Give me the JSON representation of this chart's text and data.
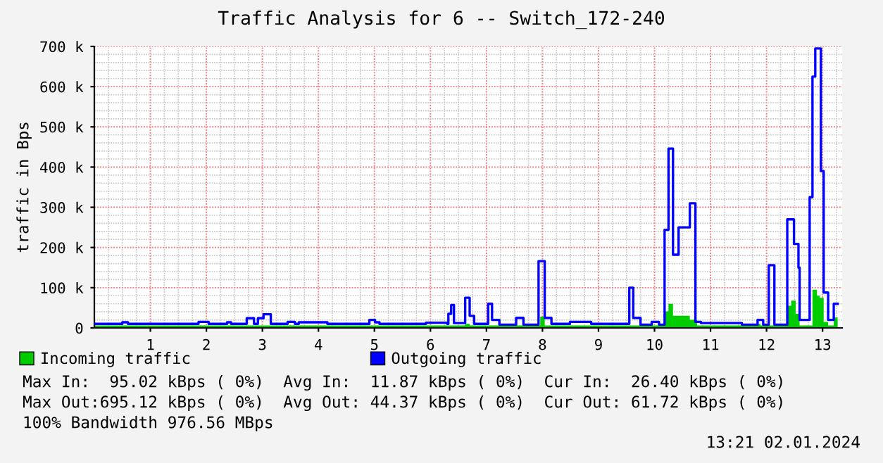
{
  "chart_data": {
    "type": "step",
    "title": "Traffic Analysis for 6 -- Switch_172-240",
    "ylabel": "traffic in Bps",
    "xlim": [
      0,
      13.35
    ],
    "xticks": [
      1,
      2,
      3,
      4,
      5,
      6,
      7,
      8,
      9,
      10,
      11,
      12,
      13
    ],
    "ylim": [
      0,
      700000
    ],
    "yticks": [
      0,
      {
        "value": 100000,
        "label": "100 k"
      },
      {
        "value": 200000,
        "label": "200 k"
      },
      {
        "value": 300000,
        "label": "300 k"
      },
      {
        "value": 400000,
        "label": "400 k"
      },
      {
        "value": 500000,
        "label": "500 k"
      },
      {
        "value": 600000,
        "label": "600 k"
      },
      {
        "value": 700000,
        "label": "700 k"
      }
    ],
    "grid": true,
    "legend": "bottom",
    "series": [
      {
        "name": "Incoming traffic",
        "type": "area",
        "color": "#00cc00",
        "x": [
          0,
          6.62,
          6.7,
          7.96,
          8.04,
          10.18,
          10.25,
          10.33,
          10.63,
          10.76,
          11.84,
          11.89,
          12.37,
          12.44,
          12.52,
          12.59,
          12.82,
          12.9,
          12.95,
          13.02,
          13.1,
          13.2,
          13.27
        ],
        "values": [
          6000,
          10000,
          6000,
          28000,
          6000,
          41000,
          60000,
          30000,
          20000,
          6000,
          10000,
          6000,
          55000,
          68000,
          35000,
          6000,
          95000,
          80000,
          75000,
          15000,
          6000,
          26000,
          26000
        ]
      },
      {
        "name": "Outgoing traffic",
        "color": "#0000ff",
        "x": [
          0,
          0.5,
          0.6,
          1.86,
          2.04,
          2.37,
          2.44,
          2.72,
          2.85,
          2.92,
          3.02,
          3.15,
          3.45,
          3.58,
          3.65,
          4.16,
          4.91,
          5.01,
          5.09,
          5.92,
          6.3,
          6.32,
          6.37,
          6.42,
          6.62,
          6.7,
          6.78,
          7.03,
          7.1,
          7.23,
          7.53,
          7.66,
          7.93,
          8.04,
          8.16,
          8.49,
          8.87,
          9.55,
          9.62,
          9.75,
          9.95,
          10.08,
          10.18,
          10.25,
          10.33,
          10.43,
          10.63,
          10.73,
          10.83,
          11.56,
          11.84,
          11.94,
          12.04,
          12.14,
          12.37,
          12.49,
          12.57,
          12.59,
          12.77,
          12.82,
          12.87,
          12.97,
          13.02,
          13.1,
          13.2,
          13.27
        ],
        "values": [
          10000,
          14000,
          10000,
          15000,
          10000,
          14000,
          10000,
          24000,
          10000,
          24000,
          34000,
          10000,
          15000,
          10000,
          14000,
          10000,
          20000,
          14000,
          10000,
          13000,
          10000,
          35000,
          57000,
          12000,
          75000,
          30000,
          10000,
          60000,
          20000,
          8000,
          25000,
          8000,
          166000,
          25000,
          10000,
          15000,
          10000,
          100000,
          25000,
          8000,
          15000,
          8000,
          244000,
          446000,
          182000,
          250000,
          310000,
          15000,
          12000,
          8000,
          20000,
          8000,
          156000,
          8000,
          270000,
          209000,
          150000,
          20000,
          325000,
          625000,
          695000,
          390000,
          88000,
          20000,
          60000,
          60000
        ]
      }
    ],
    "annotations": [
      "Max In:  95.02 kBps ( 0%)  Avg In:  11.87 kBps ( 0%)  Cur In:  26.40 kBps ( 0%)",
      "Max Out:695.12 kBps ( 0%)  Avg Out: 44.37 kBps ( 0%)  Cur Out: 61.72 kBps ( 0%)",
      "100% Bandwidth 976.56 MBps",
      "13:21 02.01.2024"
    ]
  }
}
